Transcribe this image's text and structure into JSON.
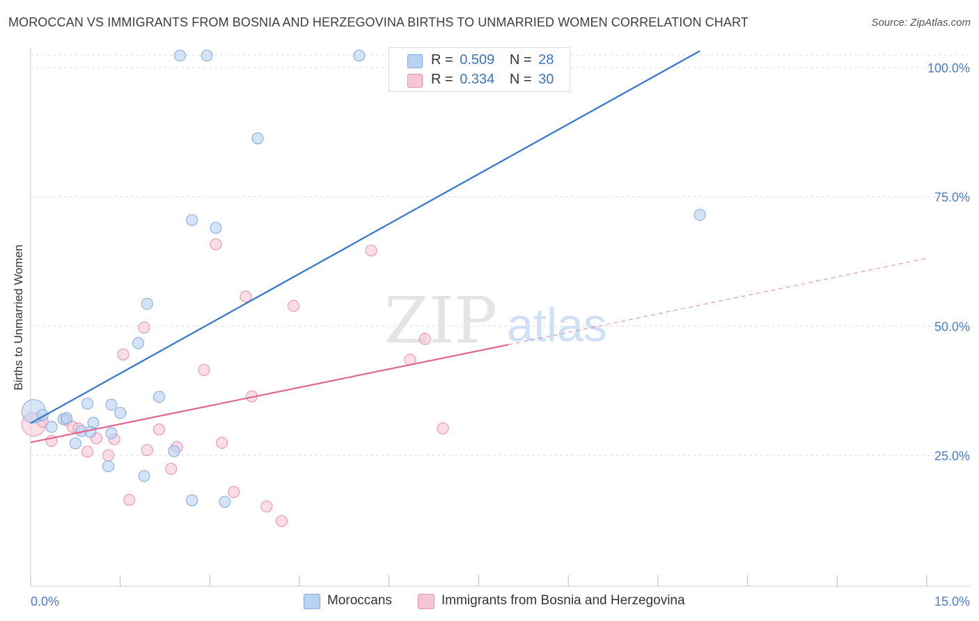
{
  "header": {
    "title": "MOROCCAN VS IMMIGRANTS FROM BOSNIA AND HERZEGOVINA BIRTHS TO UNMARRIED WOMEN CORRELATION CHART",
    "source": "Source: ZipAtlas.com"
  },
  "watermark": {
    "zip": "ZIP",
    "atlas": "atlas"
  },
  "legend": {
    "rows": [
      {
        "r_label": "R =",
        "r_value": "0.509",
        "n_label": "N =",
        "n_value": "28"
      },
      {
        "r_label": "R =",
        "r_value": "0.334",
        "n_label": "N =",
        "n_value": "30"
      }
    ]
  },
  "bottom_legend": [
    "Moroccans",
    "Immigrants from Bosnia and Herzegovina"
  ],
  "colors": {
    "blue_fill": "#b8d2f3",
    "blue_stroke": "#7fa8de",
    "blue_line": "#2e74d0",
    "pink_fill": "#f7c6d4",
    "pink_stroke": "#e98fab",
    "pink_line": "#e0658f",
    "tick_label": "#4a7cc7",
    "grid": "#dddddd"
  },
  "chart_data": {
    "type": "scatter",
    "title": "MOROCCAN VS IMMIGRANTS FROM BOSNIA AND HERZEGOVINA BIRTHS TO UNMARRIED WOMEN CORRELATION CHART",
    "xlabel": "",
    "ylabel": "Births to Unmarried Women",
    "xlim": [
      0,
      15
    ],
    "ylim": [
      0,
      100
    ],
    "x_tick_labels": [
      "0.0%",
      "15.0%"
    ],
    "y_tick_values": [
      25,
      50,
      75,
      100
    ],
    "y_tick_labels": [
      "25.0%",
      "50.0%",
      "75.0%",
      "100.0%"
    ],
    "grid": true,
    "legend_position": "top-center",
    "series": [
      {
        "name": "Moroccans",
        "R": 0.509,
        "N": 28,
        "trend": {
          "x": [
            0,
            11.2
          ],
          "y": [
            31.2,
            103.2
          ]
        },
        "points": [
          {
            "x": 0.05,
            "y": 33.5,
            "big": true
          },
          {
            "x": 0.2,
            "y": 32.8
          },
          {
            "x": 0.35,
            "y": 30.5
          },
          {
            "x": 0.55,
            "y": 32.0
          },
          {
            "x": 0.6,
            "y": 32.2
          },
          {
            "x": 0.75,
            "y": 27.3
          },
          {
            "x": 0.85,
            "y": 29.7
          },
          {
            "x": 0.95,
            "y": 35.0
          },
          {
            "x": 1.05,
            "y": 31.3
          },
          {
            "x": 1.35,
            "y": 34.8
          },
          {
            "x": 1.5,
            "y": 33.2
          },
          {
            "x": 1.3,
            "y": 22.9
          },
          {
            "x": 1.9,
            "y": 21.0
          },
          {
            "x": 1.8,
            "y": 46.7
          },
          {
            "x": 1.95,
            "y": 54.3
          },
          {
            "x": 2.15,
            "y": 36.3
          },
          {
            "x": 2.4,
            "y": 25.8
          },
          {
            "x": 2.7,
            "y": 70.5
          },
          {
            "x": 3.1,
            "y": 69.0
          },
          {
            "x": 2.7,
            "y": 16.3
          },
          {
            "x": 3.25,
            "y": 16.0
          },
          {
            "x": 3.8,
            "y": 86.3
          },
          {
            "x": 2.5,
            "y": 102.3
          },
          {
            "x": 2.95,
            "y": 102.3
          },
          {
            "x": 5.5,
            "y": 102.3
          },
          {
            "x": 11.2,
            "y": 71.5
          },
          {
            "x": 1.0,
            "y": 29.5
          },
          {
            "x": 1.35,
            "y": 29.3
          }
        ]
      },
      {
        "name": "Immigrants from Bosnia and Herzegovina",
        "R": 0.334,
        "N": 30,
        "trend": {
          "x": [
            0,
            8.0
          ],
          "y": [
            27.5,
            46.4
          ]
        },
        "trend_extension": {
          "x": [
            8.0,
            15.0
          ],
          "y": [
            46.4,
            63.1
          ]
        },
        "points": [
          {
            "x": 0.05,
            "y": 31.0,
            "big": true
          },
          {
            "x": 0.2,
            "y": 31.5
          },
          {
            "x": 0.35,
            "y": 27.8
          },
          {
            "x": 0.6,
            "y": 31.8
          },
          {
            "x": 0.7,
            "y": 30.5
          },
          {
            "x": 0.8,
            "y": 30.2
          },
          {
            "x": 0.95,
            "y": 25.7
          },
          {
            "x": 1.1,
            "y": 28.3
          },
          {
            "x": 1.3,
            "y": 25.0
          },
          {
            "x": 1.4,
            "y": 28.1
          },
          {
            "x": 1.55,
            "y": 44.5
          },
          {
            "x": 1.65,
            "y": 16.4
          },
          {
            "x": 1.9,
            "y": 49.7
          },
          {
            "x": 1.95,
            "y": 26.0
          },
          {
            "x": 2.15,
            "y": 30.0
          },
          {
            "x": 2.35,
            "y": 22.4
          },
          {
            "x": 2.45,
            "y": 26.6
          },
          {
            "x": 2.9,
            "y": 41.5
          },
          {
            "x": 3.1,
            "y": 65.8
          },
          {
            "x": 3.2,
            "y": 27.4
          },
          {
            "x": 3.4,
            "y": 17.9
          },
          {
            "x": 3.6,
            "y": 55.7
          },
          {
            "x": 3.7,
            "y": 36.4
          },
          {
            "x": 3.95,
            "y": 15.1
          },
          {
            "x": 4.2,
            "y": 12.3
          },
          {
            "x": 4.4,
            "y": 53.9
          },
          {
            "x": 5.7,
            "y": 64.6
          },
          {
            "x": 6.35,
            "y": 43.5
          },
          {
            "x": 6.6,
            "y": 47.5
          },
          {
            "x": 6.9,
            "y": 30.2
          }
        ]
      }
    ]
  }
}
